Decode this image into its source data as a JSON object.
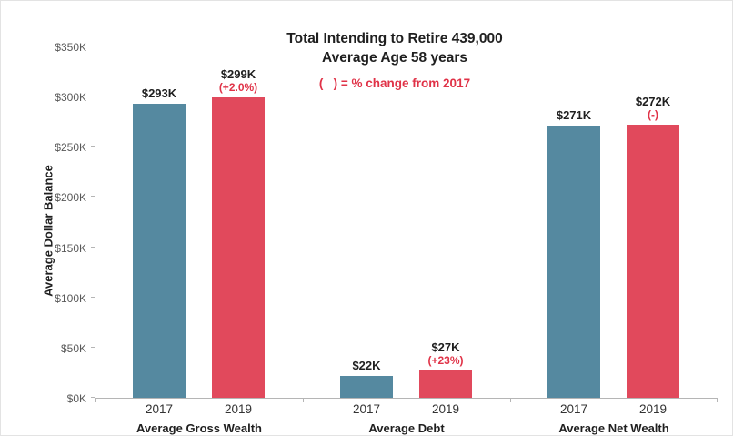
{
  "header": {
    "title_line1": "Total Intending to Retire 439,000",
    "title_line2": "Average Age 58 years",
    "legend_note": "(   ) = % change from 2017"
  },
  "y_axis": {
    "title": "Average Dollar Balance",
    "tick_labels": [
      "$0K",
      "$50K",
      "$100K",
      "$150K",
      "$200K",
      "$250K",
      "$300K",
      "$350K"
    ]
  },
  "colors": {
    "bar_2017": "#5589a0",
    "bar_2019": "#e1495c",
    "annotation_red": "#e03247",
    "axis_gray": "#b5b5b5"
  },
  "chart_data": {
    "type": "bar",
    "title": "Total Intending to Retire 439,000",
    "subtitle": "Average Age 58 years",
    "annotation": "(   ) = % change from 2017",
    "xlabel": "",
    "ylabel": "Average Dollar Balance",
    "ylim": [
      0,
      350
    ],
    "y_tick_labels": [
      "$0K",
      "$50K",
      "$100K",
      "$150K",
      "$200K",
      "$250K",
      "$300K",
      "$350K"
    ],
    "grid": false,
    "legend_position": "none",
    "categories": [
      "Average Gross Wealth",
      "Average Debt",
      "Average Net Wealth"
    ],
    "series": [
      {
        "name": "2017",
        "color": "#5589a0",
        "values": [
          293,
          22,
          271
        ],
        "value_labels": [
          "$293K",
          "$22K",
          "$271K"
        ]
      },
      {
        "name": "2019",
        "color": "#e1495c",
        "values": [
          299,
          27,
          272
        ],
        "value_labels": [
          "$299K",
          "$27K",
          "$272K"
        ],
        "change_labels": [
          "(+2.0%)",
          "(+23%)",
          "(-)"
        ]
      }
    ]
  }
}
